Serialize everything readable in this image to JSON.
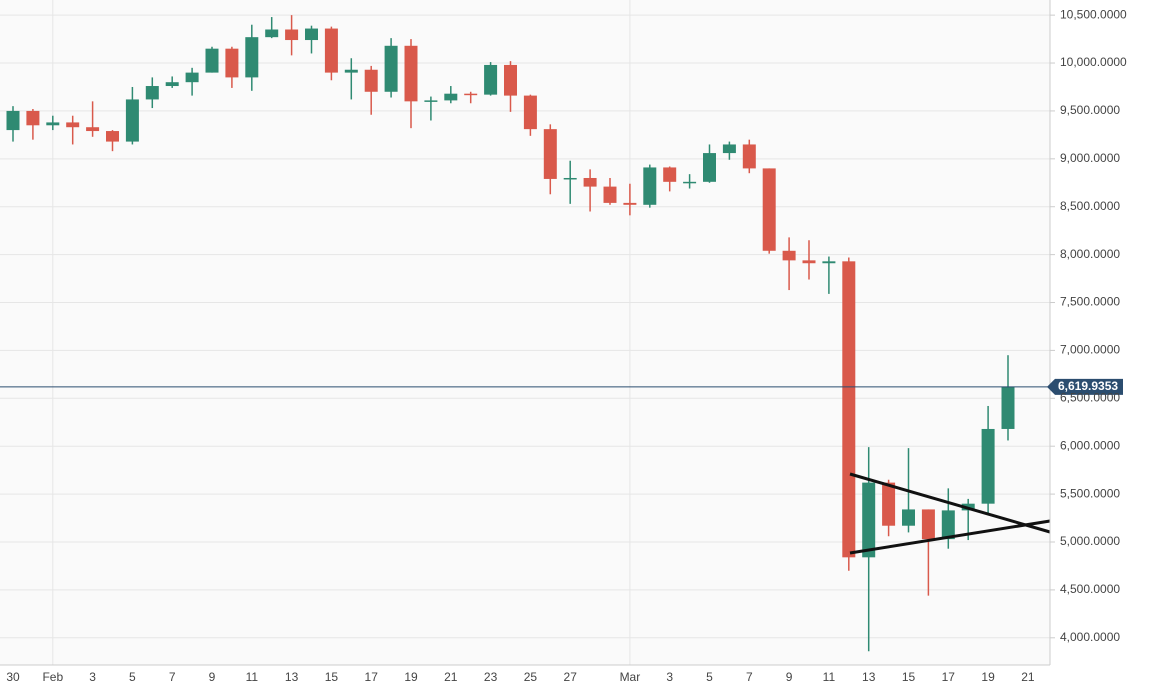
{
  "chart_data": {
    "type": "candlestick",
    "categories": [
      "30",
      null,
      "Feb",
      null,
      "3",
      null,
      "5",
      null,
      "7",
      null,
      "9",
      null,
      "11",
      null,
      "13",
      null,
      "15",
      null,
      "17",
      null,
      "19",
      null,
      "21",
      null,
      "23",
      null,
      "25",
      null,
      "27",
      null,
      null,
      "Mar",
      null,
      "3",
      null,
      "5",
      null,
      "7",
      null,
      "9",
      null,
      "11",
      null,
      "13",
      null,
      "15",
      null,
      "17",
      null,
      "19",
      null,
      "21"
    ],
    "open": [
      9300,
      9500,
      9350,
      9380,
      9330,
      9290,
      9180,
      9620,
      9760,
      9800,
      9900,
      10150,
      9850,
      10270,
      10350,
      10240,
      10360,
      9900,
      9930,
      9700,
      10180,
      9600,
      9610,
      9680,
      9670,
      9980,
      9660,
      9310,
      8790,
      8800,
      8710,
      8540,
      8520,
      8910,
      8760,
      8760,
      9060,
      9150,
      8900,
      8040,
      7940,
      7910,
      7930,
      4840,
      5620,
      5170,
      5340,
      5030,
      5330,
      5400,
      6180,
      null
    ],
    "high": [
      9550,
      9520,
      9450,
      9450,
      9600,
      9300,
      9750,
      9850,
      9860,
      9950,
      10170,
      10170,
      10400,
      10480,
      10500,
      10390,
      10380,
      10050,
      9970,
      10260,
      10250,
      9650,
      9760,
      9700,
      10010,
      10020,
      9670,
      9360,
      8980,
      8890,
      8800,
      8740,
      8940,
      8920,
      8840,
      9150,
      9180,
      9200,
      8900,
      8180,
      8150,
      7980,
      7970,
      5990,
      5650,
      5980,
      5340,
      5560,
      5450,
      6420,
      6950,
      null
    ],
    "low": [
      9180,
      9200,
      9300,
      9150,
      9230,
      9080,
      9150,
      9530,
      9740,
      9660,
      9900,
      9740,
      9710,
      10260,
      10080,
      10100,
      9820,
      9620,
      9460,
      9640,
      9320,
      9400,
      9580,
      9580,
      9660,
      9490,
      9240,
      8630,
      8530,
      8450,
      8520,
      8410,
      8490,
      8660,
      8690,
      8750,
      8990,
      8850,
      8010,
      7630,
      7740,
      7590,
      4700,
      3860,
      5060,
      5100,
      4440,
      4930,
      5020,
      5300,
      6060,
      null
    ],
    "close": [
      9500,
      9350,
      9380,
      9330,
      9290,
      9180,
      9620,
      9760,
      9800,
      9900,
      10150,
      9850,
      10270,
      10350,
      10240,
      10360,
      9900,
      9930,
      9700,
      10180,
      9600,
      9610,
      9680,
      9670,
      9980,
      9660,
      9310,
      8790,
      8800,
      8710,
      8540,
      8520,
      8910,
      8760,
      8760,
      9060,
      9150,
      8900,
      8040,
      7940,
      7910,
      7930,
      4840,
      5620,
      5170,
      5340,
      5030,
      5330,
      5400,
      6180,
      6620,
      null
    ],
    "up_color": "#2f8a72",
    "down_color": "#d9594b",
    "last_price": {
      "value": 6619.9353,
      "label": "6,619.9353"
    },
    "ylim": [
      3716,
      10658
    ],
    "yticks": [
      {
        "value": 4000,
        "label": "4,000.0000"
      },
      {
        "value": 4500,
        "label": "4,500.0000"
      },
      {
        "value": 5000,
        "label": "5,000.0000"
      },
      {
        "value": 5500,
        "label": "5,500.0000"
      },
      {
        "value": 6000,
        "label": "6,000.0000"
      },
      {
        "value": 6500,
        "label": "6,500.0000"
      },
      {
        "value": 7000,
        "label": "7,000.0000"
      },
      {
        "value": 7500,
        "label": "7,500.0000"
      },
      {
        "value": 8000,
        "label": "8,000.0000"
      },
      {
        "value": 8500,
        "label": "8,500.0000"
      },
      {
        "value": 9000,
        "label": "9,000.0000"
      },
      {
        "value": 9500,
        "label": "9,500.0000"
      },
      {
        "value": 10000,
        "label": "10,000.0000"
      },
      {
        "value": 10500,
        "label": "10,500.0000"
      }
    ],
    "grid": true
  }
}
